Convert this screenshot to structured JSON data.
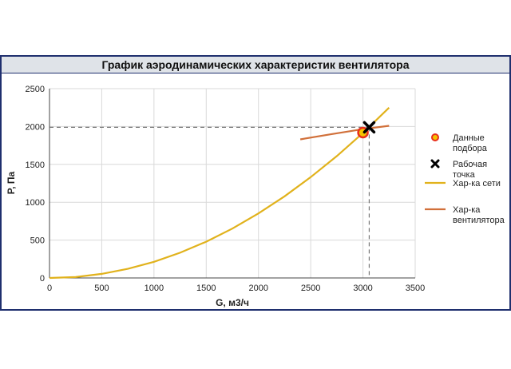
{
  "chart_data": {
    "type": "line",
    "title": "График аэродинамических характеристик вентилятора",
    "xlabel": "G, м3/ч",
    "ylabel": "P, Па",
    "xlim": [
      0,
      3500
    ],
    "ylim": [
      0,
      2500
    ],
    "xticks": [
      0,
      500,
      1000,
      1500,
      2000,
      2500,
      3000,
      3500
    ],
    "yticks": [
      0,
      500,
      1000,
      1500,
      2000,
      2500
    ],
    "grid": true,
    "legend_position": "right",
    "series": [
      {
        "name": "Данные подбора",
        "kind": "scatter",
        "marker": "circle",
        "color": "#e8301c",
        "fill": "#f5c400",
        "points": [
          [
            3000,
            1920
          ]
        ]
      },
      {
        "name": "Рабочая точка",
        "kind": "scatter",
        "marker": "x",
        "color": "#000000",
        "points": [
          [
            3060,
            1990
          ]
        ]
      },
      {
        "name": "Хар-ка сети",
        "kind": "line",
        "color": "#e1b21c",
        "points": [
          [
            0,
            0
          ],
          [
            250,
            12
          ],
          [
            500,
            54
          ],
          [
            750,
            120
          ],
          [
            1000,
            213
          ],
          [
            1250,
            333
          ],
          [
            1500,
            479
          ],
          [
            1750,
            652
          ],
          [
            2000,
            852
          ],
          [
            2250,
            1078
          ],
          [
            2500,
            1331
          ],
          [
            2750,
            1610
          ],
          [
            3000,
            1916
          ],
          [
            3250,
            2249
          ]
        ]
      },
      {
        "name": "Хар-ка вентилятора",
        "kind": "line",
        "color": "#d1703a",
        "points": [
          [
            2400,
            1830
          ],
          [
            2700,
            1900
          ],
          [
            3000,
            1965
          ],
          [
            3250,
            2010
          ]
        ]
      }
    ],
    "reference_lines": {
      "x": 3060,
      "y": 1990
    }
  }
}
